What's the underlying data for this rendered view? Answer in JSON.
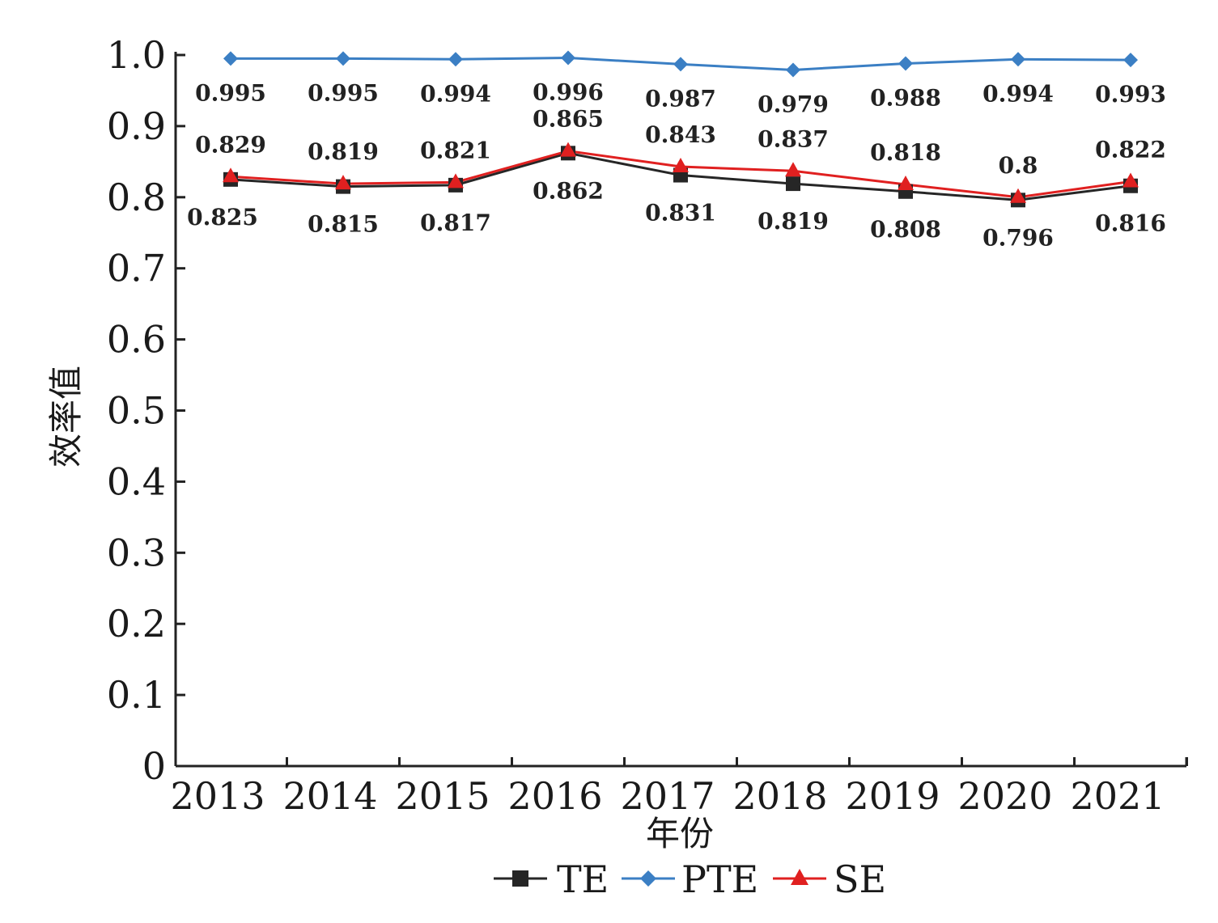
{
  "chart_data": {
    "type": "line",
    "xlabel": "年份",
    "ylabel": "效率值",
    "ylim": [
      0,
      1.0
    ],
    "yticks": [
      "0",
      "0.1",
      "0.2",
      "0.3",
      "0.4",
      "0.5",
      "0.6",
      "0.7",
      "0.8",
      "0.9",
      "1.0"
    ],
    "categories": [
      "2013",
      "2014",
      "2015",
      "2016",
      "2017",
      "2018",
      "2019",
      "2020",
      "2021"
    ],
    "legend_position": "bottom",
    "grid": false,
    "series": [
      {
        "name": "TE",
        "color": "#262626",
        "marker": "square",
        "values": [
          0.825,
          0.815,
          0.817,
          0.862,
          0.831,
          0.819,
          0.808,
          0.796,
          0.816
        ],
        "labels": [
          "0.825",
          "0.815",
          "0.817",
          "0.862",
          "0.831",
          "0.819",
          "0.808",
          "0.796",
          "0.816"
        ]
      },
      {
        "name": "PTE",
        "color": "#3b7fc4",
        "marker": "diamond",
        "values": [
          0.995,
          0.995,
          0.994,
          0.996,
          0.987,
          0.979,
          0.988,
          0.994,
          0.993
        ],
        "labels": [
          "0.995",
          "0.995",
          "0.994",
          "0.996",
          "0.987",
          "0.979",
          "0.988",
          "0.994",
          "0.993"
        ]
      },
      {
        "name": "SE",
        "color": "#e02020",
        "marker": "triangle",
        "values": [
          0.829,
          0.819,
          0.821,
          0.865,
          0.843,
          0.837,
          0.818,
          0.8,
          0.822
        ],
        "labels": [
          "0.829",
          "0.819",
          "0.821",
          "0.865",
          "0.843",
          "0.837",
          "0.818",
          "0.8",
          "0.822"
        ]
      }
    ]
  }
}
